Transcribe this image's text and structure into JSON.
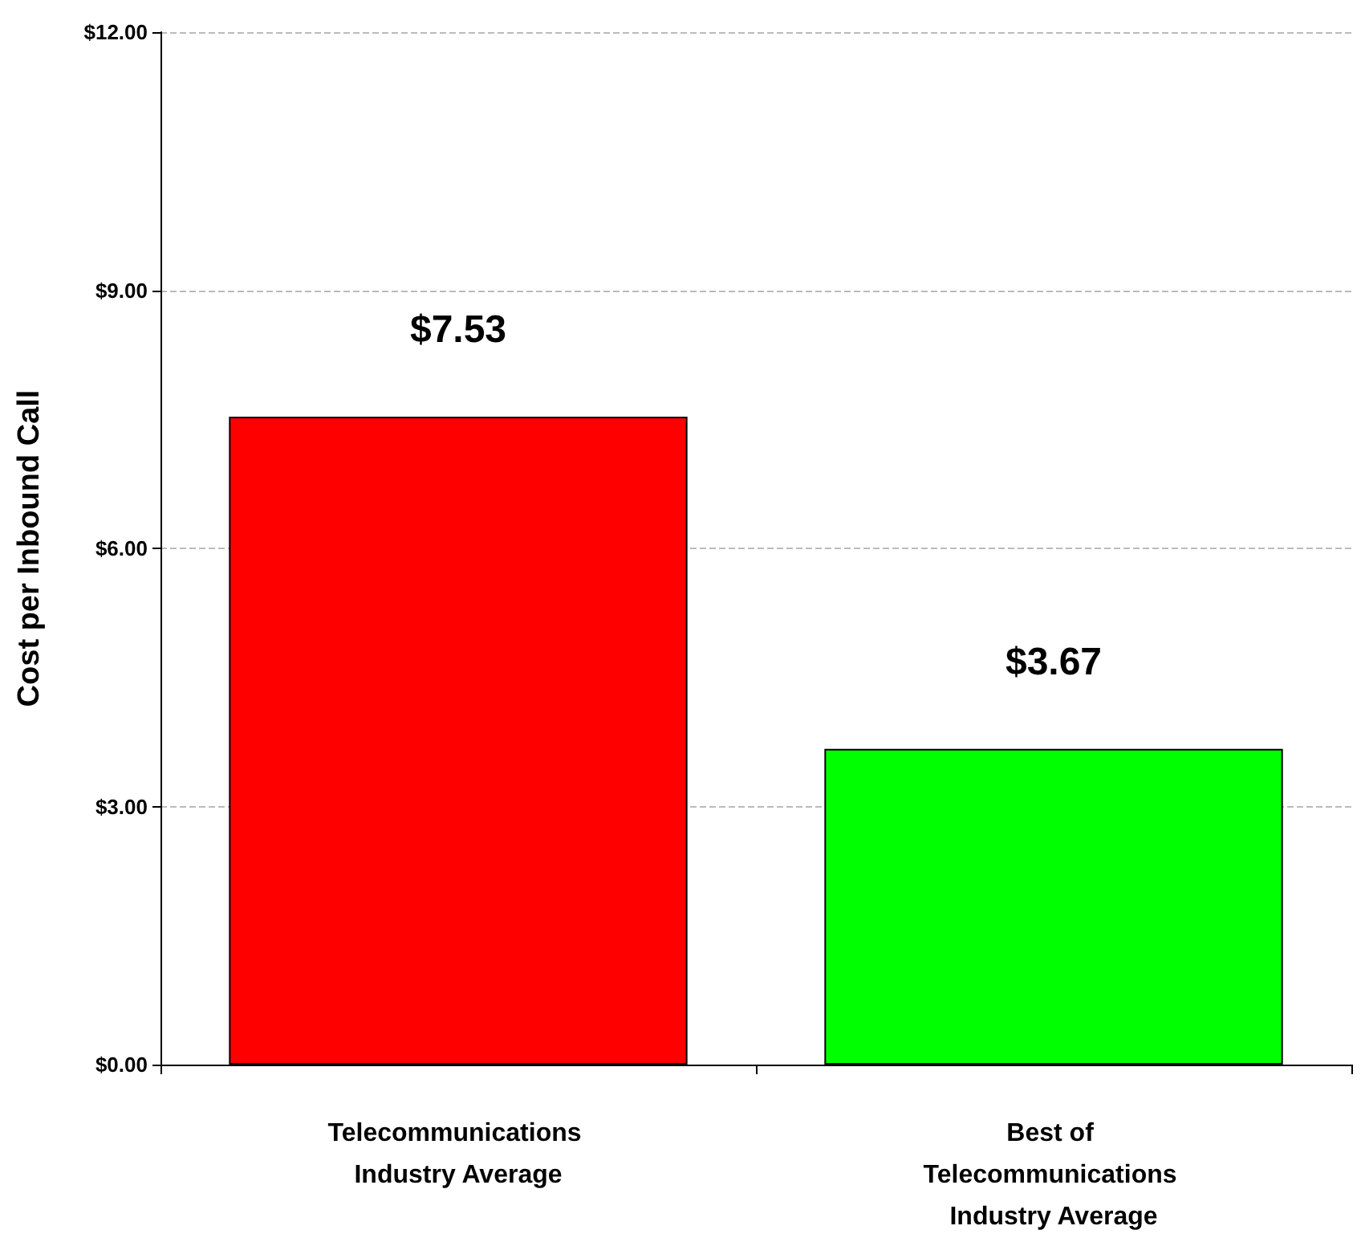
{
  "chart_data": {
    "type": "bar",
    "ylabel": "Cost per Inbound Call",
    "categories": [
      "Telecommunications Industry Average",
      "Best of Telecommunications Industry Average"
    ],
    "colors": [
      "#ff0000",
      "#00ff00"
    ],
    "values": [
      7.53,
      3.67
    ],
    "value_labels": [
      "$7.53",
      "$3.67"
    ],
    "ylim": [
      0,
      12
    ],
    "yticks": [
      {
        "value": 0,
        "label": "$0.00"
      },
      {
        "value": 3,
        "label": "$3.00"
      },
      {
        "value": 6,
        "label": "$6.00"
      },
      {
        "value": 9,
        "label": "$9.00"
      },
      {
        "value": 12,
        "label": "$12.00"
      }
    ],
    "grid": "y"
  }
}
